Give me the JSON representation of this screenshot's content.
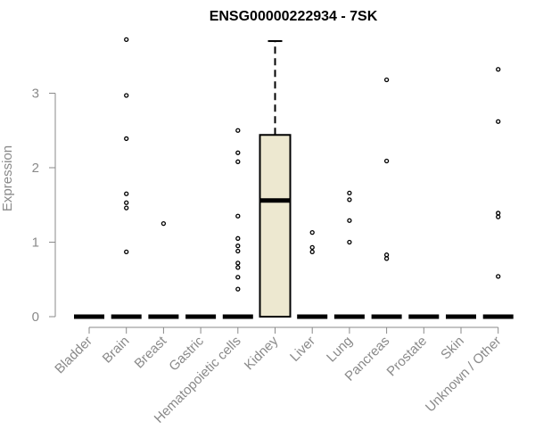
{
  "chart_data": {
    "type": "box",
    "title": "ENSG00000222934 - 7SK",
    "ylabel": "Expression",
    "xlabel": "",
    "ylim": [
      0,
      3.75
    ],
    "yticks": [
      0,
      1,
      2,
      3
    ],
    "grid": false,
    "box_fill": "#ede8d0",
    "outlier_color": "#000000",
    "categories": [
      "Bladder",
      "Brain",
      "Breast",
      "Gastric",
      "Hematopoietic cells",
      "Kidney",
      "Liver",
      "Lung",
      "Pancreas",
      "Prostate",
      "Skin",
      "Unknown / Other"
    ],
    "boxes": [
      {
        "q1": 0,
        "median": 0,
        "q3": 0,
        "whisker_low": 0,
        "whisker_high": 0,
        "outliers": []
      },
      {
        "q1": 0,
        "median": 0,
        "q3": 0,
        "whisker_low": 0,
        "whisker_high": 0,
        "outliers": [
          3.72,
          2.97,
          2.39,
          1.65,
          1.53,
          1.46,
          0.87
        ]
      },
      {
        "q1": 0,
        "median": 0,
        "q3": 0,
        "whisker_low": 0,
        "whisker_high": 0,
        "outliers": [
          1.25
        ]
      },
      {
        "q1": 0,
        "median": 0,
        "q3": 0,
        "whisker_low": 0,
        "whisker_high": 0,
        "outliers": []
      },
      {
        "q1": 0,
        "median": 0,
        "q3": 0,
        "whisker_low": 0,
        "whisker_high": 0,
        "outliers": [
          2.5,
          2.2,
          2.08,
          1.35,
          1.05,
          0.95,
          0.88,
          0.72,
          0.66,
          0.53,
          0.37
        ]
      },
      {
        "q1": 0,
        "median": 1.56,
        "q3": 2.44,
        "whisker_low": 0,
        "whisker_high": 3.7,
        "outliers": []
      },
      {
        "q1": 0,
        "median": 0,
        "q3": 0,
        "whisker_low": 0,
        "whisker_high": 0,
        "outliers": [
          1.13,
          0.93,
          0.87
        ]
      },
      {
        "q1": 0,
        "median": 0,
        "q3": 0,
        "whisker_low": 0,
        "whisker_high": 0,
        "outliers": [
          1.66,
          1.57,
          1.29,
          1.0
        ]
      },
      {
        "q1": 0,
        "median": 0,
        "q3": 0,
        "whisker_low": 0,
        "whisker_high": 0,
        "outliers": [
          3.18,
          2.09,
          0.83,
          0.78
        ]
      },
      {
        "q1": 0,
        "median": 0,
        "q3": 0,
        "whisker_low": 0,
        "whisker_high": 0,
        "outliers": []
      },
      {
        "q1": 0,
        "median": 0,
        "q3": 0,
        "whisker_low": 0,
        "whisker_high": 0,
        "outliers": []
      },
      {
        "q1": 0,
        "median": 0,
        "q3": 0,
        "whisker_low": 0,
        "whisker_high": 0,
        "outliers": [
          3.32,
          2.62,
          1.39,
          1.34,
          0.54
        ]
      }
    ]
  }
}
